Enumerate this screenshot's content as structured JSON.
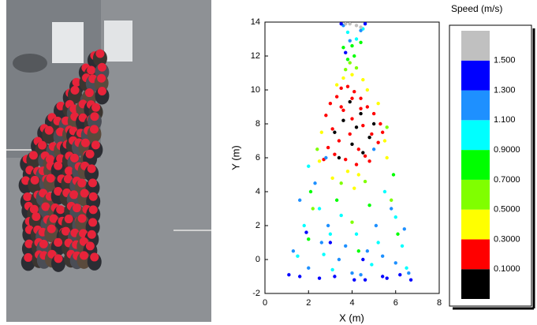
{
  "chart_data": {
    "type": "scatter",
    "xlabel": "X (m)",
    "ylabel": "Y (m)",
    "xlim": [
      0,
      8
    ],
    "xticks": [
      0,
      2,
      4,
      6,
      8
    ],
    "ylim": [
      -2,
      14
    ],
    "yticks": [
      -2,
      0,
      2,
      4,
      6,
      8,
      10,
      12,
      14
    ],
    "series": [
      {
        "color": "#000000",
        "x": [
          3.2,
          3.6,
          4.0,
          4.4,
          4.8,
          3.9,
          4.5,
          3.4,
          5.0,
          4.2
        ],
        "y": [
          7.5,
          8.2,
          6.8,
          8.6,
          7.2,
          9.3,
          6.3,
          6.0,
          8.0,
          7.8
        ]
      },
      {
        "color": "#ff0000",
        "x": [
          2.8,
          3.0,
          3.3,
          3.5,
          3.8,
          4.1,
          4.4,
          4.7,
          5.0,
          5.3,
          3.1,
          3.6,
          4.0,
          4.5,
          4.9,
          5.2,
          2.9,
          3.4,
          3.9,
          4.3,
          4.6,
          3.7,
          4.2,
          3.2,
          4.8,
          3.5,
          4.0,
          4.4,
          2.7,
          5.4
        ],
        "y": [
          8.5,
          9.2,
          9.6,
          10.1,
          10.2,
          9.9,
          9.5,
          9.0,
          8.6,
          8.0,
          7.7,
          8.8,
          8.3,
          7.9,
          7.4,
          6.9,
          6.6,
          7.0,
          7.4,
          6.5,
          6.1,
          5.9,
          5.6,
          6.2,
          5.8,
          9.0,
          9.5,
          8.9,
          5.9,
          7.5
        ]
      },
      {
        "color": "#ffff00",
        "x": [
          2.6,
          3.3,
          3.6,
          4.0,
          4.5,
          4.7,
          5.2,
          5.5,
          3.8,
          4.3,
          2.5,
          5.6,
          3.1,
          4.1
        ],
        "y": [
          7.5,
          10.3,
          10.7,
          10.9,
          10.6,
          10.0,
          9.2,
          7.0,
          5.2,
          5.0,
          5.8,
          6.0,
          4.8,
          4.2
        ]
      },
      {
        "color": "#80ff00",
        "x": [
          3.7,
          4.2,
          3.9,
          2.4,
          5.6,
          3.5,
          4.6,
          2.2,
          5.8,
          4.0
        ],
        "y": [
          11.2,
          11.3,
          11.6,
          6.5,
          7.8,
          4.5,
          4.6,
          3.0,
          3.5,
          2.2
        ]
      },
      {
        "color": "#00ff00",
        "x": [
          3.8,
          4.1,
          4.0,
          3.6,
          4.4,
          2.1,
          5.9,
          3.3,
          4.8,
          2.0,
          6.1,
          4.3
        ],
        "y": [
          11.8,
          12.0,
          12.6,
          12.5,
          12.8,
          4.0,
          5.0,
          3.5,
          3.2,
          1.2,
          1.5,
          0.5
        ]
      },
      {
        "color": "#00ffff",
        "x": [
          3.8,
          4.2,
          4.5,
          2.0,
          2.5,
          3.0,
          3.5,
          5.5,
          6.0,
          5.2,
          1.8,
          2.7,
          4.2,
          6.3,
          3.1,
          4.9,
          1.5,
          6.5
        ],
        "y": [
          13.4,
          13.0,
          13.6,
          5.5,
          3.0,
          1.5,
          2.6,
          4.0,
          2.5,
          1.0,
          2.0,
          0.3,
          1.5,
          0.8,
          -0.6,
          -0.3,
          0.2,
          -0.5
        ]
      },
      {
        "color": "#1e90ff",
        "x": [
          3.6,
          4.4,
          3.9,
          1.6,
          2.3,
          2.9,
          3.4,
          4.0,
          4.7,
          5.4,
          5.8,
          6.4,
          1.3,
          2.0,
          2.6,
          3.7,
          4.4,
          5.1,
          6.0,
          6.6,
          2.8,
          5.0
        ],
        "y": [
          13.8,
          13.5,
          12.9,
          3.5,
          4.5,
          2.0,
          0.0,
          -0.8,
          0.5,
          0.2,
          3.0,
          1.8,
          0.5,
          -0.5,
          1.0,
          0.8,
          -0.9,
          2.0,
          -0.2,
          -0.8,
          6.0,
          6.5
        ]
      },
      {
        "color": "#0000ff",
        "x": [
          3.5,
          4.6,
          3.7,
          1.1,
          1.6,
          2.5,
          3.2,
          4.1,
          4.6,
          5.6,
          6.7,
          6.2,
          1.9,
          3.0,
          4.5,
          5.4
        ],
        "y": [
          13.9,
          13.9,
          12.2,
          -0.9,
          -1.0,
          -1.1,
          -1.0,
          -1.2,
          -1.2,
          -1.1,
          -1.2,
          -0.9,
          1.6,
          1.0,
          0.0,
          -1.0
        ]
      },
      {
        "color": "#c0c0c0",
        "x": [
          3.9,
          4.2,
          4.4,
          3.7
        ],
        "y": [
          13.9,
          13.8,
          13.7,
          13.9
        ]
      }
    ],
    "colorbar": {
      "title": "Speed (m/s)",
      "colors": [
        "#000000",
        "#ff0000",
        "#ffff00",
        "#80ff00",
        "#00ff00",
        "#00ffff",
        "#1e90ff",
        "#0000ff",
        "#c0c0c0"
      ],
      "ticks": [
        {
          "value": 0.1,
          "label": "0.1000"
        },
        {
          "value": 0.3,
          "label": "0.3000"
        },
        {
          "value": 0.5,
          "label": "0.5000"
        },
        {
          "value": 0.7,
          "label": "0.7000"
        },
        {
          "value": 0.9,
          "label": "0.9000"
        },
        {
          "value": 1.1,
          "label": "1.100"
        },
        {
          "value": 1.3,
          "label": "1.300"
        },
        {
          "value": 1.5,
          "label": "1.500"
        }
      ]
    }
  }
}
